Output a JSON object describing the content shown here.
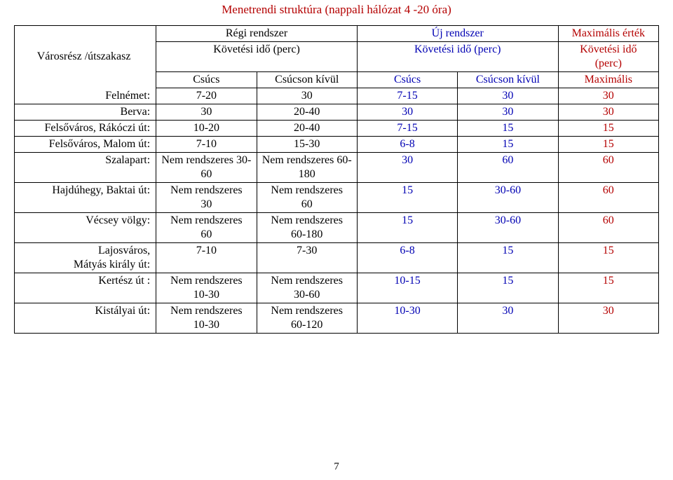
{
  "title": "Menetrendi struktúra (nappali hálózat 4 -20 óra)",
  "page_number": "7",
  "header": {
    "row_label": "Városrész /útszakasz",
    "regi_rendszer": "Régi rendszer",
    "uj_rendszer": "Új rendszer",
    "max_ertek": "Maximális érték",
    "kovetesi_ido_perc": "Követési idő (perc)",
    "kovetesi_ido_perc_stacked_1": "Követési idő",
    "kovetesi_ido_perc_stacked_2": "(perc)",
    "csucs": "Csúcs",
    "csucson_kivul": "Csúcson kívül",
    "maximalis": "Maximális"
  },
  "rows": [
    {
      "label": "Felnémet:",
      "c1": "7-20",
      "c2": "30",
      "c3": "7-15",
      "c4": "30",
      "c5": "30",
      "multi": false
    },
    {
      "label": "Berva:",
      "c1": "30",
      "c2": "20-40",
      "c3": "30",
      "c4": "30",
      "c5": "30",
      "multi": false
    },
    {
      "label": "Felsőváros, Rákóczi út:",
      "c1": "10-20",
      "c2": "20-40",
      "c3": "7-15",
      "c4": "15",
      "c5": "15",
      "multi": false
    },
    {
      "label": "Felsőváros, Malom út:",
      "c1": "7-10",
      "c2": "15-30",
      "c3": "6-8",
      "c4": "15",
      "c5": "15",
      "multi": false
    },
    {
      "label": "Szalapart:",
      "c1a": "Nem rendszeres 30-",
      "c1b": "60",
      "c2a": "Nem rendszeres 60-",
      "c2b": "180",
      "c3": "30",
      "c4": "60",
      "c5": "60",
      "multi": true
    },
    {
      "label": "Hajdúhegy, Baktai út:",
      "c1a": "Nem rendszeres",
      "c1b": "30",
      "c2a": "Nem rendszeres",
      "c2b": "60",
      "c3": "15",
      "c4": "30-60",
      "c5": "60",
      "multi": true
    },
    {
      "label": "Vécsey völgy:",
      "c1a": "Nem rendszeres",
      "c1b": "60",
      "c2a": "Nem rendszeres",
      "c2b": "60-180",
      "c3": "15",
      "c4": "30-60",
      "c5": "60",
      "multi": true
    },
    {
      "label_a": "Lajosváros,",
      "label_b": "Mátyás király út:",
      "c1": "7-10",
      "c2": "7-30",
      "c3": "6-8",
      "c4": "15",
      "c5": "15",
      "multi_label": true
    },
    {
      "label": "Kertész út :",
      "c1a": "Nem rendszeres",
      "c1b": "10-30",
      "c2a": "Nem rendszeres",
      "c2b": "30-60",
      "c3": "10-15",
      "c4": "15",
      "c5": "15",
      "multi": true,
      "last": false
    },
    {
      "label": "Kistályai út:",
      "c1a": "Nem rendszeres",
      "c1b": "10-30",
      "c2a": "Nem rendszeres",
      "c2b": "60-120",
      "c3": "10-30",
      "c4": "30",
      "c5": "30",
      "multi": true,
      "last": true
    }
  ],
  "colwidths": [
    "22%",
    "15.6%",
    "15.6%",
    "15.6%",
    "15.6%",
    "15.6%"
  ]
}
